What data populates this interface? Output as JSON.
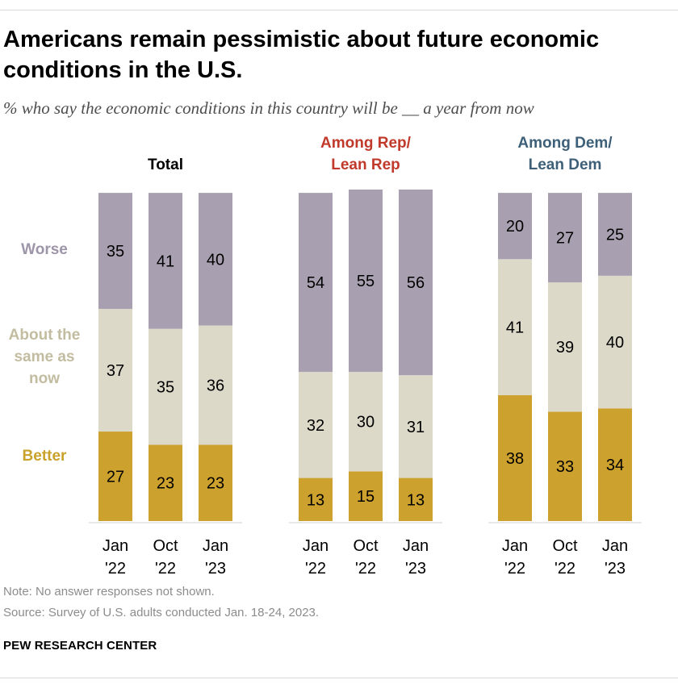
{
  "title": "Americans remain pessimistic about future economic conditions in the U.S.",
  "subtitle": "% who say the economic conditions in this country will be __ a year from now",
  "note": "Note: No answer responses not shown.",
  "source": "Source: Survey of U.S. adults conducted Jan. 18-24, 2023.",
  "brand": "PEW RESEARCH CENTER",
  "colors": {
    "better": "#cda12e",
    "same": "#dcd9c9",
    "worse": "#a8a0b0",
    "rep": "#c0392b",
    "dem": "#3d6078",
    "total": "#000000",
    "better_label": "#c9a22c",
    "same_label": "#c2bca0",
    "worse_label": "#9d95a8"
  },
  "chart_data": {
    "type": "bar",
    "stacked": true,
    "ylim": [
      0,
      100
    ],
    "category_labels": [
      {
        "key": "worse",
        "lines": [
          "Worse"
        ]
      },
      {
        "key": "same",
        "lines": [
          "About the",
          "same as",
          "now"
        ]
      },
      {
        "key": "better",
        "lines": [
          "Better"
        ]
      }
    ],
    "groups": [
      {
        "label_lines": [
          "Total"
        ],
        "color_key": "total",
        "bars": [
          {
            "tick": [
              "Jan",
              "'22"
            ],
            "better": 27,
            "same": 37,
            "worse": 35
          },
          {
            "tick": [
              "Oct",
              "'22"
            ],
            "better": 23,
            "same": 35,
            "worse": 41
          },
          {
            "tick": [
              "Jan",
              "'23"
            ],
            "better": 23,
            "same": 36,
            "worse": 40
          }
        ]
      },
      {
        "label_lines": [
          "Among Rep/",
          "Lean Rep"
        ],
        "color_key": "rep",
        "bars": [
          {
            "tick": [
              "Jan",
              "'22"
            ],
            "better": 13,
            "same": 32,
            "worse": 54
          },
          {
            "tick": [
              "Oct",
              "'22"
            ],
            "better": 15,
            "same": 30,
            "worse": 55
          },
          {
            "tick": [
              "Jan",
              "'23"
            ],
            "better": 13,
            "same": 31,
            "worse": 56
          }
        ]
      },
      {
        "label_lines": [
          "Among Dem/",
          "Lean Dem"
        ],
        "color_key": "dem",
        "bars": [
          {
            "tick": [
              "Jan",
              "'22"
            ],
            "better": 38,
            "same": 41,
            "worse": 20
          },
          {
            "tick": [
              "Oct",
              "'22"
            ],
            "better": 33,
            "same": 39,
            "worse": 27
          },
          {
            "tick": [
              "Jan",
              "'23"
            ],
            "better": 34,
            "same": 40,
            "worse": 25
          }
        ]
      }
    ]
  }
}
